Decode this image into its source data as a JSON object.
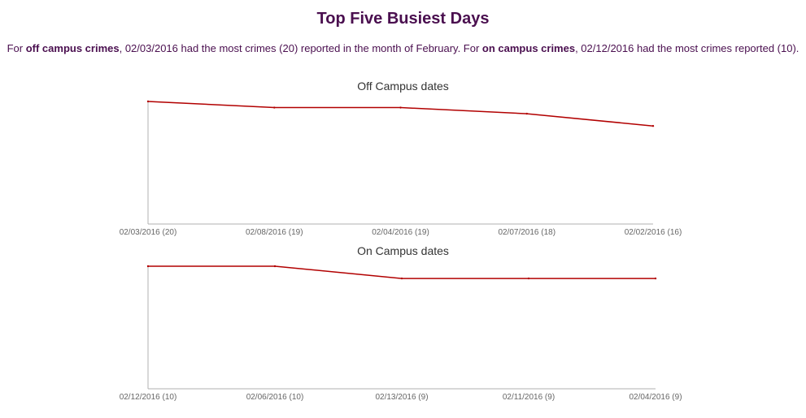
{
  "colors": {
    "title": "#4a0f4f",
    "text": "#4a0f4f",
    "chart_title": "#333333",
    "tick": "#666666",
    "line": "#b20000"
  },
  "header": {
    "title": "Top Five Busiest Days"
  },
  "summary": {
    "p1": "For ",
    "b1": "off campus crimes",
    "p2": ", 02/03/2016 had the most crimes (20) reported in the month of February. For ",
    "b2": "on campus crimes",
    "p3": ", 02/12/2016 had the most crimes reported (10)."
  },
  "chart_data": [
    {
      "type": "line",
      "title": "Off Campus dates",
      "categories": [
        "02/03/2016 (20)",
        "02/08/2016 (19)",
        "02/04/2016 (19)",
        "02/07/2016 (18)",
        "02/02/2016 (16)"
      ],
      "series": [
        {
          "values": [
            20,
            19,
            19,
            18,
            16
          ]
        }
      ],
      "ylim": [
        0,
        20
      ],
      "grid": false
    },
    {
      "type": "line",
      "title": "On Campus dates",
      "categories": [
        "02/12/2016 (10)",
        "02/06/2016 (10)",
        "02/13/2016 (9)",
        "02/11/2016 (9)",
        "02/04/2016 (9)"
      ],
      "series": [
        {
          "values": [
            10,
            10,
            9,
            9,
            9
          ]
        }
      ],
      "ylim": [
        0,
        10
      ],
      "grid": false
    }
  ]
}
